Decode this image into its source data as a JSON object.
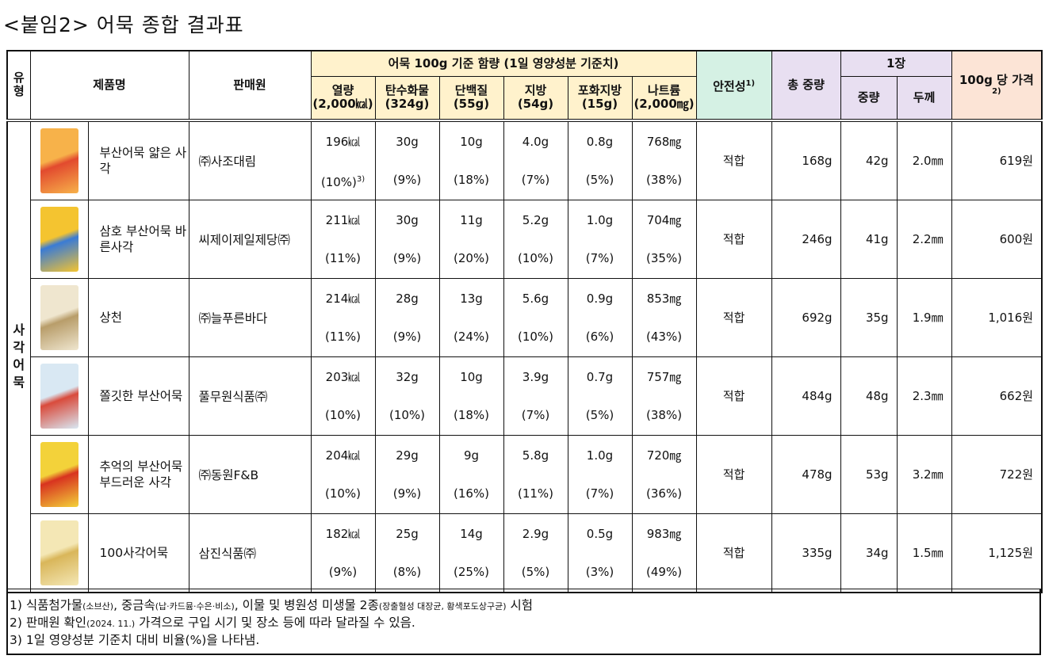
{
  "title": "<붙임2> 어묵 종합 결과표",
  "header": {
    "type": "유형",
    "product": "제품명",
    "seller": "판매원",
    "nutrition_group": "어묵 100g 기준 함량 (1일 영양성분 기준치)",
    "nutrients": [
      {
        "name": "열량",
        "ref": "(2,000㎉)"
      },
      {
        "name": "탄수화물",
        "ref": "(324g)"
      },
      {
        "name": "단백질",
        "ref": "(55g)"
      },
      {
        "name": "지방",
        "ref": "(54g)"
      },
      {
        "name": "포화지방",
        "ref": "(15g)"
      },
      {
        "name": "나트륨",
        "ref": "(2,000㎎)"
      }
    ],
    "safety": "안전성",
    "safety_note": "1)",
    "total_weight": "총 중량",
    "sheet_group": "1장",
    "sheet_weight": "중량",
    "thickness": "두께",
    "price": "100g 당 가격",
    "price_note": "2)"
  },
  "category": "사각어묵",
  "rows": [
    {
      "name": "부산어묵 얇은 사각",
      "seller": "㈜사조대림",
      "nutrients": [
        {
          "value": "196㎉",
          "pct": "(10%)",
          "note": "3)"
        },
        {
          "value": "30g",
          "pct": "(9%)"
        },
        {
          "value": "10g",
          "pct": "(18%)"
        },
        {
          "value": "4.0g",
          "pct": "(7%)"
        },
        {
          "value": "0.8g",
          "pct": "(5%)"
        },
        {
          "value": "768㎎",
          "pct": "(38%)"
        }
      ],
      "safety": "적합",
      "total_weight": "168g",
      "sheet_weight": "42g",
      "thickness": "2.0㎜",
      "price": "619원"
    },
    {
      "name": "삼호 부산어묵 바른사각",
      "seller": "씨제이제일제당㈜",
      "nutrients": [
        {
          "value": "211㎉",
          "pct": "(11%)"
        },
        {
          "value": "30g",
          "pct": "(9%)"
        },
        {
          "value": "11g",
          "pct": "(20%)"
        },
        {
          "value": "5.2g",
          "pct": "(10%)"
        },
        {
          "value": "1.0g",
          "pct": "(7%)"
        },
        {
          "value": "704㎎",
          "pct": "(35%)"
        }
      ],
      "safety": "적합",
      "total_weight": "246g",
      "sheet_weight": "41g",
      "thickness": "2.2㎜",
      "price": "600원"
    },
    {
      "name": "상천",
      "seller": "㈜늘푸른바다",
      "nutrients": [
        {
          "value": "214㎉",
          "pct": "(11%)"
        },
        {
          "value": "28g",
          "pct": "(9%)"
        },
        {
          "value": "13g",
          "pct": "(24%)"
        },
        {
          "value": "5.6g",
          "pct": "(10%)"
        },
        {
          "value": "0.9g",
          "pct": "(6%)"
        },
        {
          "value": "853㎎",
          "pct": "(43%)"
        }
      ],
      "safety": "적합",
      "total_weight": "692g",
      "sheet_weight": "35g",
      "thickness": "1.9㎜",
      "price": "1,016원"
    },
    {
      "name": "쫄깃한 부산어묵",
      "seller": "풀무원식품㈜",
      "nutrients": [
        {
          "value": "203㎉",
          "pct": "(10%)"
        },
        {
          "value": "32g",
          "pct": "(10%)"
        },
        {
          "value": "10g",
          "pct": "(18%)"
        },
        {
          "value": "3.9g",
          "pct": "(7%)"
        },
        {
          "value": "0.7g",
          "pct": "(5%)"
        },
        {
          "value": "757㎎",
          "pct": "(38%)"
        }
      ],
      "safety": "적합",
      "total_weight": "484g",
      "sheet_weight": "48g",
      "thickness": "2.3㎜",
      "price": "662원"
    },
    {
      "name": "추억의 부산어묵 부드러운 사각",
      "seller": "㈜동원F&B",
      "nutrients": [
        {
          "value": "204㎉",
          "pct": "(10%)"
        },
        {
          "value": "29g",
          "pct": "(9%)"
        },
        {
          "value": "9g",
          "pct": "(16%)"
        },
        {
          "value": "5.8g",
          "pct": "(11%)"
        },
        {
          "value": "1.0g",
          "pct": "(7%)"
        },
        {
          "value": "720㎎",
          "pct": "(36%)"
        }
      ],
      "safety": "적합",
      "total_weight": "478g",
      "sheet_weight": "53g",
      "thickness": "3.2㎜",
      "price": "722원"
    },
    {
      "name": "100사각어묵",
      "seller": "삼진식품㈜",
      "nutrients": [
        {
          "value": "182㎉",
          "pct": "(9%)"
        },
        {
          "value": "25g",
          "pct": "(8%)"
        },
        {
          "value": "14g",
          "pct": "(25%)"
        },
        {
          "value": "2.9g",
          "pct": "(5%)"
        },
        {
          "value": "0.5g",
          "pct": "(3%)"
        },
        {
          "value": "983㎎",
          "pct": "(49%)"
        }
      ],
      "safety": "적합",
      "total_weight": "335g",
      "sheet_weight": "34g",
      "thickness": "1.5㎜",
      "price": "1,125원"
    }
  ],
  "footnotes": [
    [
      "1) 식품첨가물",
      "(소브산)",
      ", 중금속",
      "(납·카드뮴·수은·비소)",
      ", 이물 및 병원성 미생물 2종",
      "(장출혈성 대장균, 황색포도상구균)",
      " 시험"
    ],
    [
      "2) 판매원 확인",
      "(2024. 11.)",
      " 가격으로 구입 시기 및 장소 등에 따라 달라질 수 있음."
    ],
    [
      "3) 1일 영양성분 기준치 대비 비율(%)을 나타냄."
    ]
  ]
}
